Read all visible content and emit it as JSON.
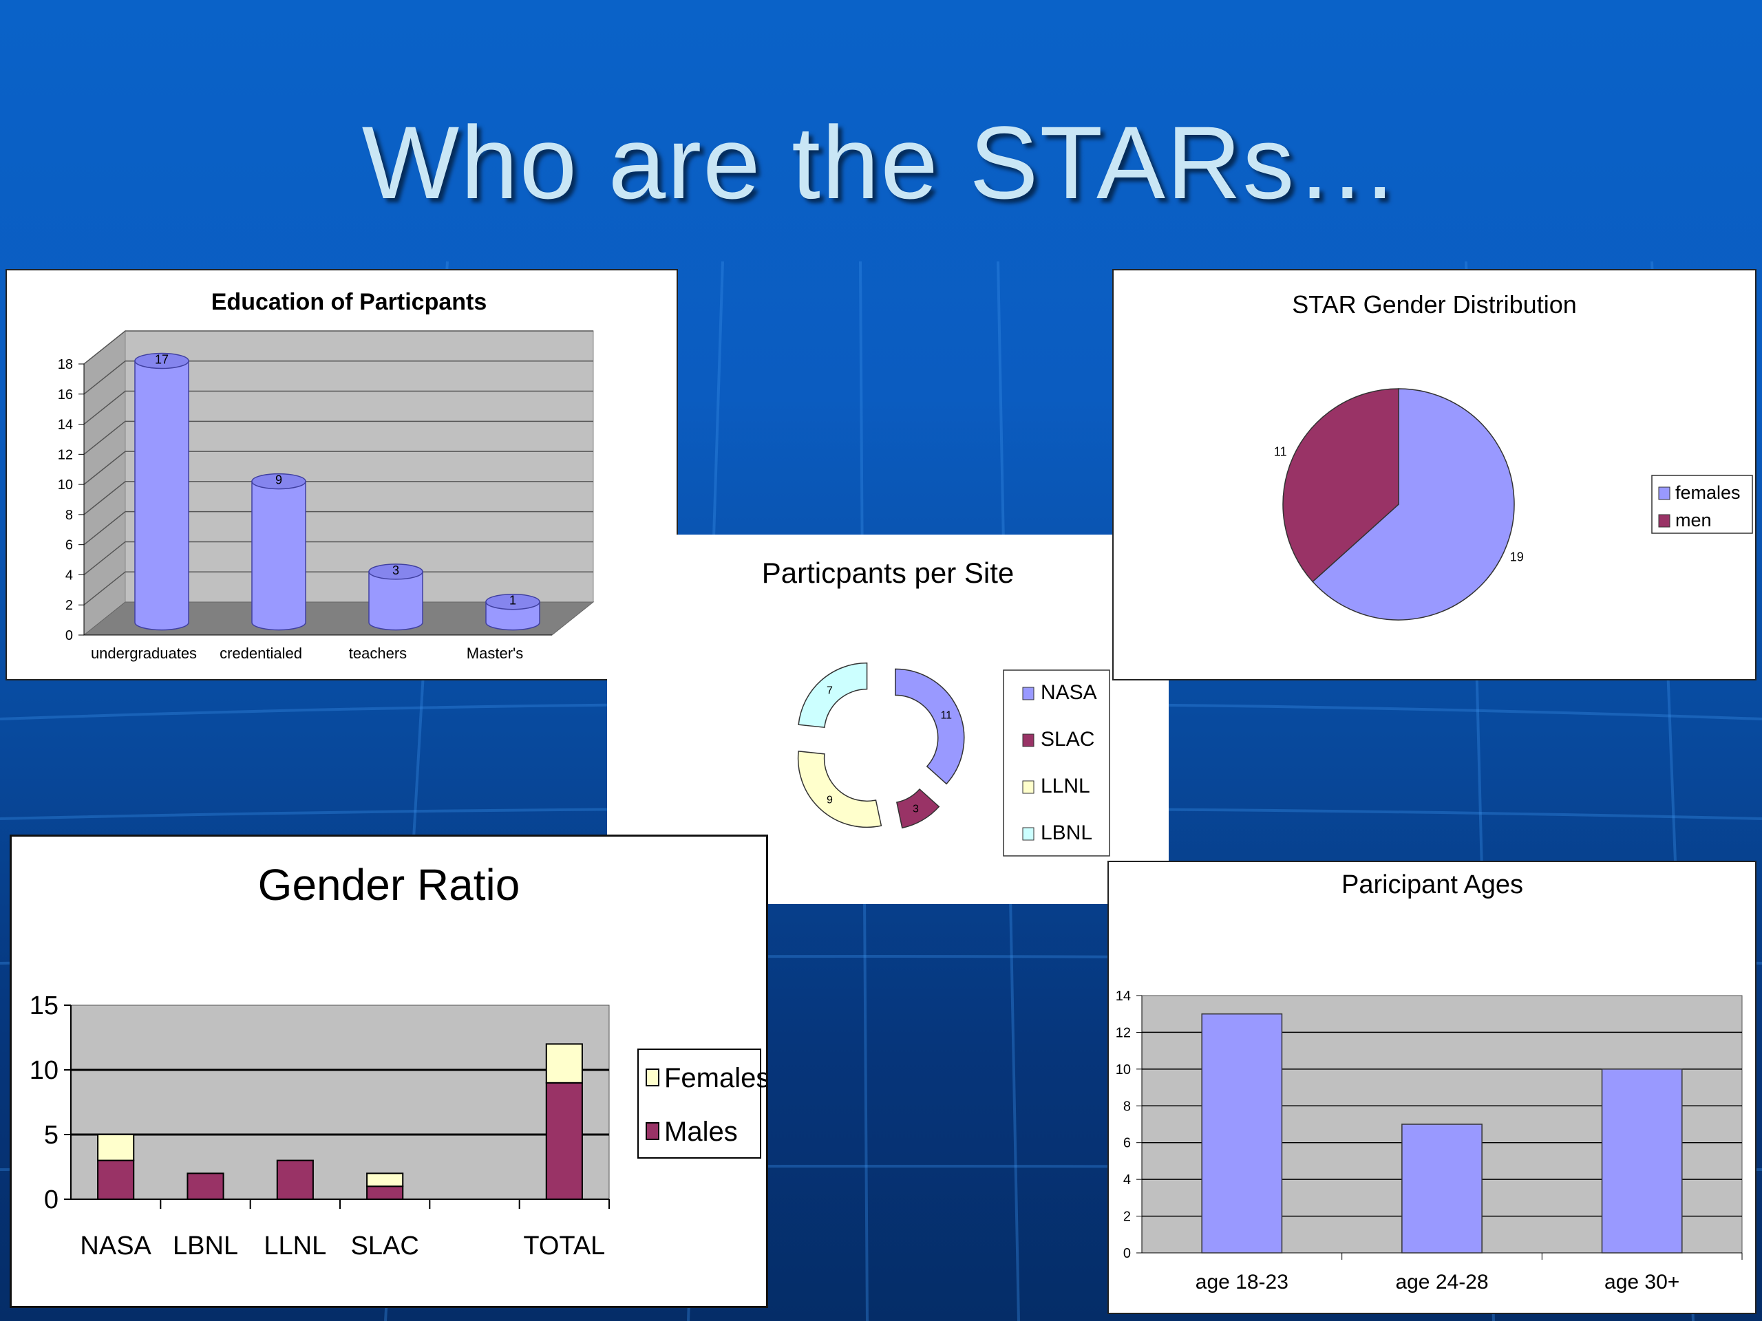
{
  "slide": {
    "title": "Who are the STARs…"
  },
  "colors": {
    "periwinkle": "#9999ff",
    "plum": "#993366",
    "cream": "#ffffcc",
    "aqua": "#ccffff",
    "plot_gray": "#c0c0c0"
  },
  "chart_data": [
    {
      "id": "education",
      "type": "bar",
      "style": "3d-cylinder",
      "title": "Education of Particpants",
      "categories": [
        "undergraduates",
        "credentialed",
        "teachers",
        "Master's"
      ],
      "values": [
        17,
        9,
        3,
        1
      ],
      "data_labels": [
        "17",
        "9",
        "3",
        "1"
      ],
      "ylim": [
        0,
        18
      ],
      "yticks": [
        0,
        2,
        4,
        6,
        8,
        10,
        12,
        14,
        16,
        18
      ],
      "grid": true
    },
    {
      "id": "sites",
      "type": "pie",
      "style": "exploded-doughnut",
      "title": "Particpants per Site",
      "categories": [
        "NASA",
        "SLAC",
        "LLNL",
        "LBNL"
      ],
      "values": [
        11,
        3,
        9,
        7
      ],
      "colors": [
        "#9999ff",
        "#993366",
        "#ffffcc",
        "#ccffff"
      ],
      "legend": {
        "position": "right",
        "entries": [
          "NASA",
          "SLAC",
          "LLNL",
          "LBNL"
        ]
      }
    },
    {
      "id": "gender",
      "type": "pie",
      "title": "STAR Gender Distribution",
      "categories": [
        "females",
        "men"
      ],
      "values": [
        19,
        11
      ],
      "colors": [
        "#9999ff",
        "#993366"
      ],
      "legend": {
        "position": "right",
        "entries": [
          "females",
          "men"
        ]
      }
    },
    {
      "id": "ratio",
      "type": "bar",
      "style": "stacked",
      "title": "Gender Ratio",
      "categories": [
        "NASA",
        "LBNL",
        "LLNL",
        "SLAC",
        "",
        "TOTAL"
      ],
      "series": [
        {
          "name": "Males",
          "values": [
            3,
            2,
            3,
            1,
            0,
            9
          ],
          "color": "#993366"
        },
        {
          "name": "Females",
          "values": [
            2,
            0,
            0,
            1,
            0,
            3
          ],
          "color": "#ffffcc"
        }
      ],
      "ylim": [
        0,
        15
      ],
      "yticks": [
        0,
        5,
        10,
        15
      ],
      "grid": true,
      "legend": {
        "position": "right",
        "entries": [
          "Females",
          "Males"
        ]
      }
    },
    {
      "id": "ages",
      "type": "bar",
      "title": "Paricipant Ages",
      "categories": [
        "age 18-23",
        "age 24-28",
        "age 30+"
      ],
      "values": [
        13,
        7,
        10
      ],
      "ylim": [
        0,
        14
      ],
      "yticks": [
        0,
        2,
        4,
        6,
        8,
        10,
        12,
        14
      ],
      "grid": true
    }
  ]
}
